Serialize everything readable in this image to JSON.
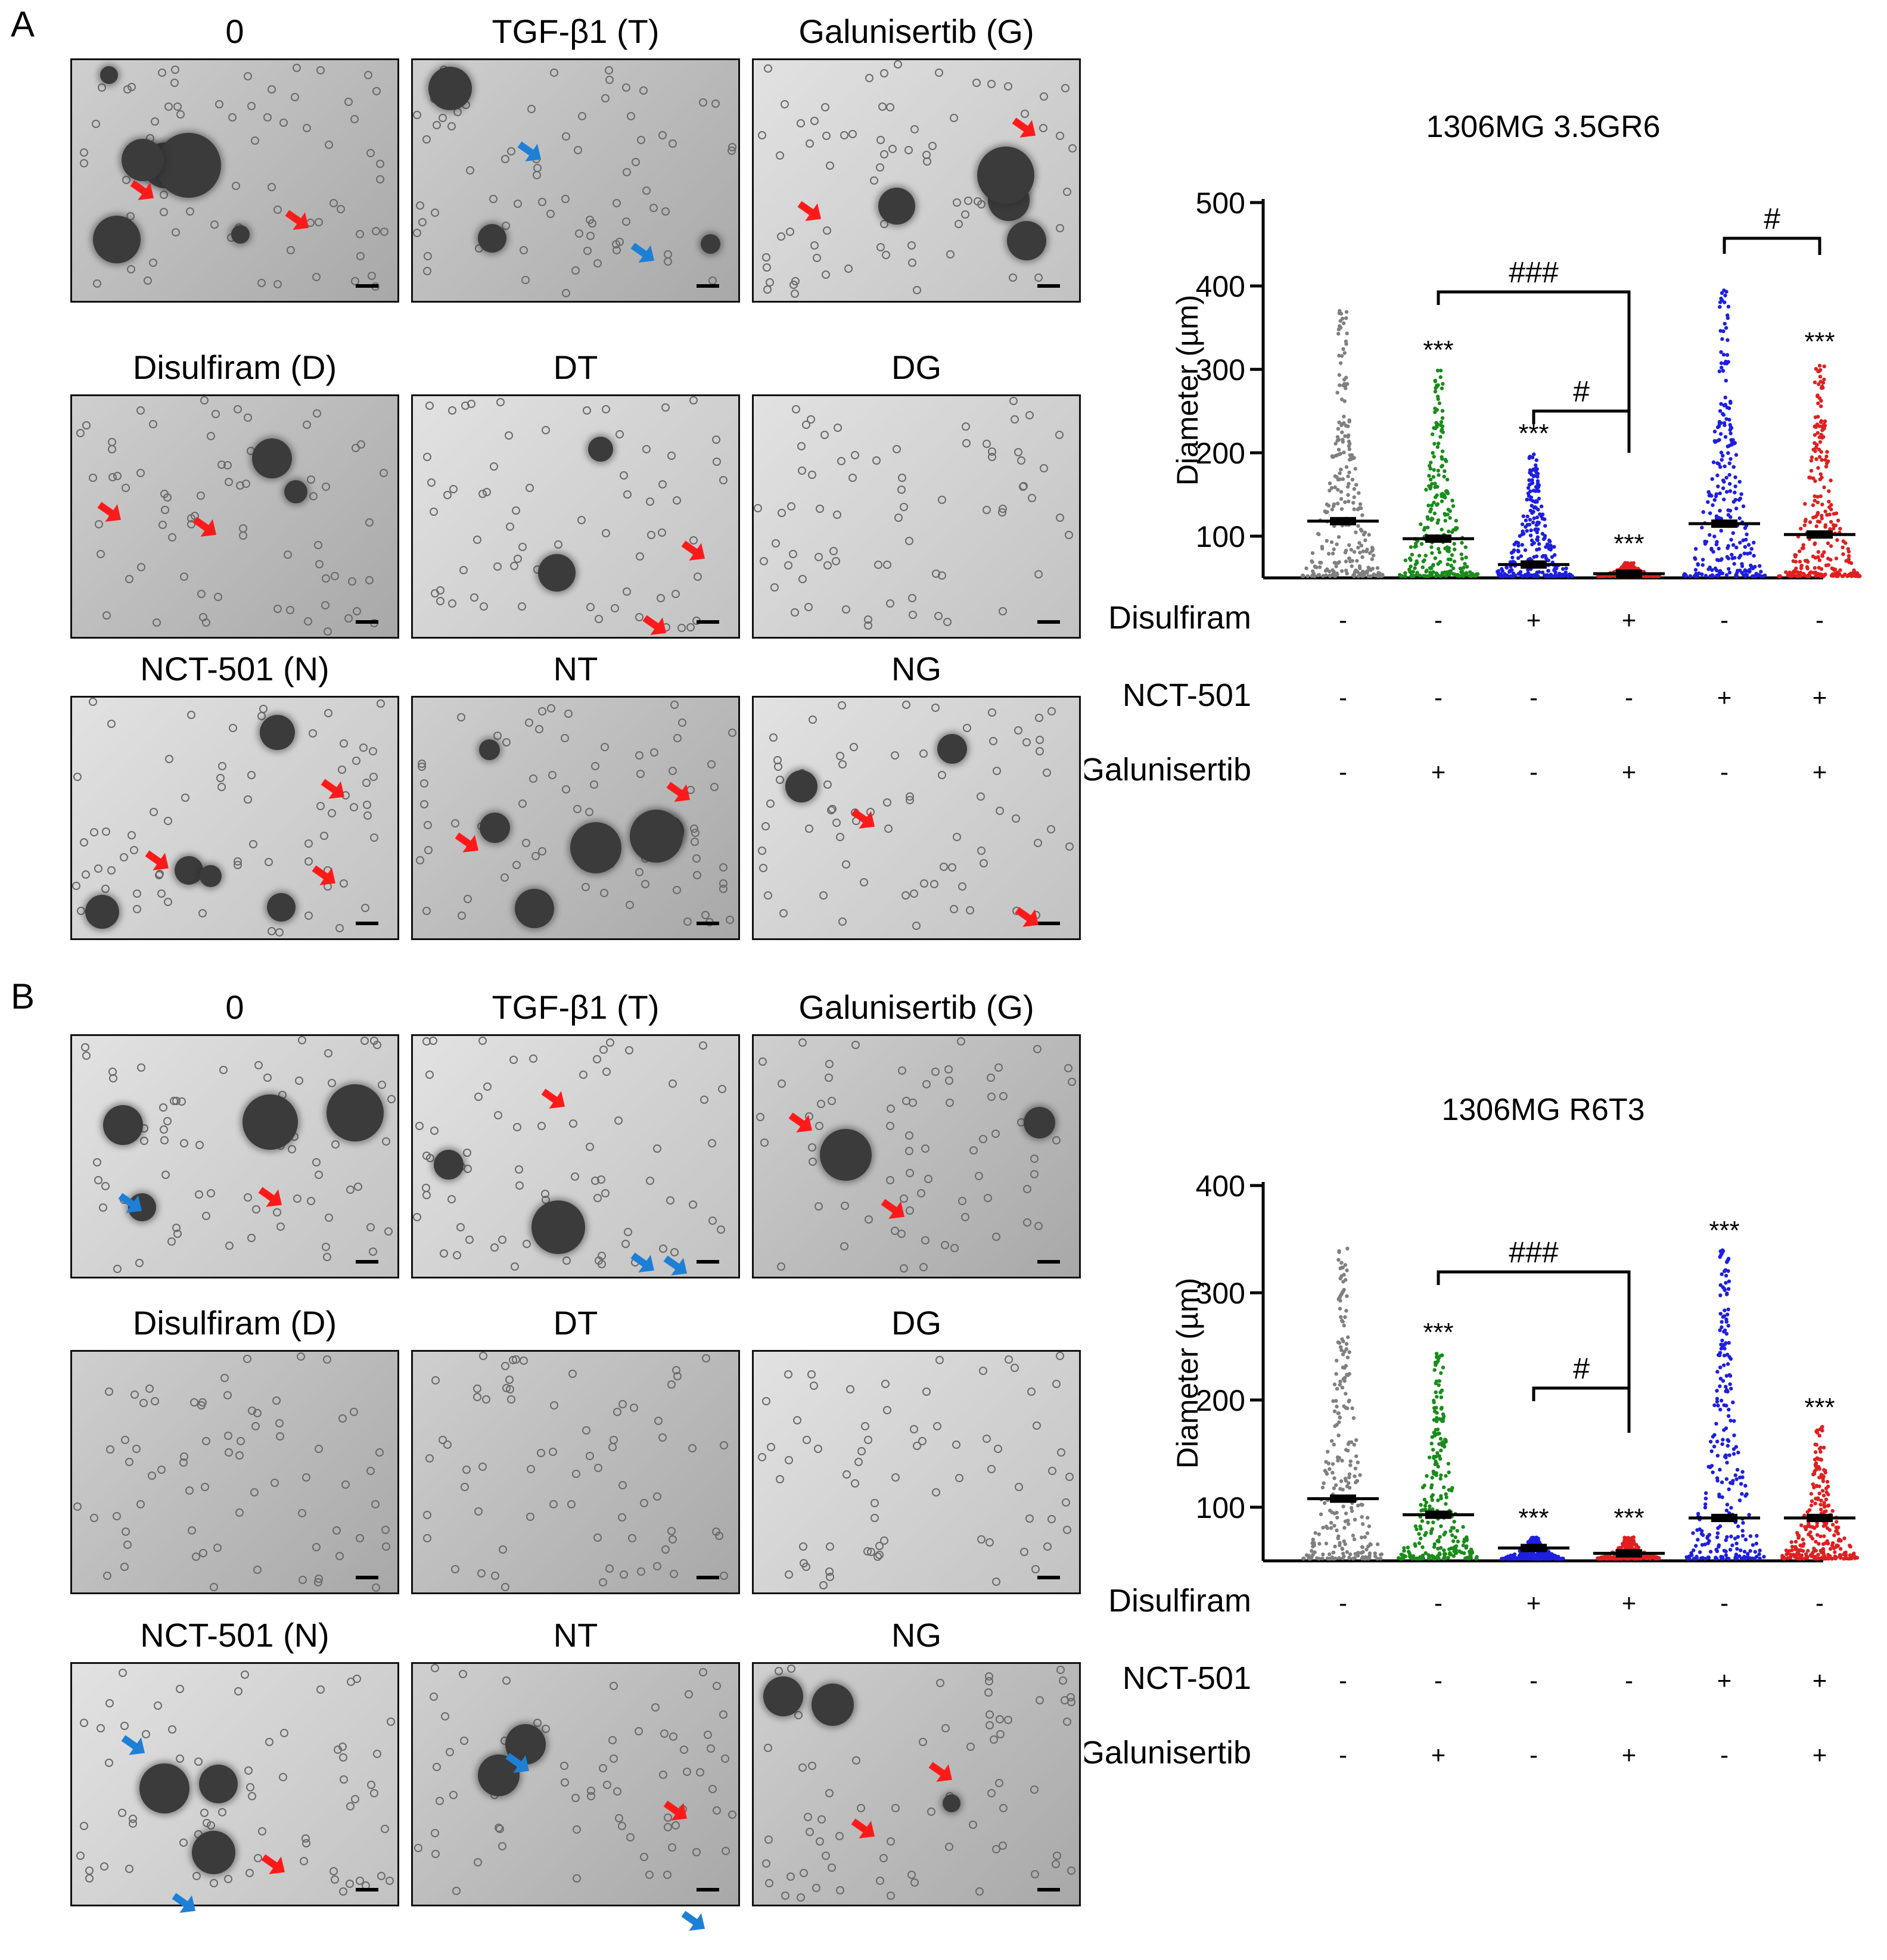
{
  "panels": [
    {
      "letter": "A",
      "images": [
        {
          "title": "0"
        },
        {
          "title": "TGF-β1 (T)"
        },
        {
          "title": "Galunisertib (G)"
        },
        {
          "title": "Disulfiram (D)"
        },
        {
          "title": "DT"
        },
        {
          "title": "DG"
        },
        {
          "title": "NCT-501 (N)"
        },
        {
          "title": "NT"
        },
        {
          "title": "NG"
        }
      ]
    },
    {
      "letter": "B",
      "images": [
        {
          "title": "0"
        },
        {
          "title": "TGF-β1 (T)"
        },
        {
          "title": "Galunisertib (G)"
        },
        {
          "title": "Disulfiram (D)"
        },
        {
          "title": "DT"
        },
        {
          "title": "DG"
        },
        {
          "title": "NCT-501 (N)"
        },
        {
          "title": "NT"
        },
        {
          "title": "NG"
        }
      ]
    }
  ],
  "treatment_labels": [
    "Disulfiram",
    "NCT-501",
    "Galunisertib"
  ],
  "chart_data": [
    {
      "type": "scatter",
      "title": "1306MG 3.5GR6",
      "ylabel": "Diameter (µm)",
      "ylim": [
        50,
        500
      ],
      "yticks": [
        "100",
        "200",
        "300",
        "400",
        "500"
      ],
      "groups": [
        {
          "color": "#808080",
          "mean": 118,
          "max": 375,
          "stars": ""
        },
        {
          "color": "#1a8c1a",
          "mean": 97,
          "max": 300,
          "stars": "***"
        },
        {
          "color": "#1f1fe0",
          "mean": 66,
          "max": 200,
          "stars": "***"
        },
        {
          "color": "#e02020",
          "mean": 55,
          "max": 68,
          "stars": "***"
        },
        {
          "color": "#1f1fe0",
          "mean": 115,
          "max": 395,
          "stars": ""
        },
        {
          "color": "#e02020",
          "mean": 102,
          "max": 310,
          "stars": "***"
        }
      ],
      "treatments": {
        "Disulfiram": [
          "-",
          "-",
          "+",
          "+",
          "-",
          "-"
        ],
        "NCT-501": [
          "-",
          "-",
          "-",
          "-",
          "+",
          "+"
        ],
        "Galunisertib": [
          "-",
          "+",
          "-",
          "+",
          "-",
          "+"
        ]
      },
      "brackets": [
        {
          "label": "###",
          "from": 1,
          "to": 3
        },
        {
          "label": "#",
          "from": 2,
          "to": 3
        },
        {
          "label": "#",
          "from": 4,
          "to": 5
        }
      ]
    },
    {
      "type": "scatter",
      "title": "1306MG R6T3",
      "ylabel": "Diameter (µm)",
      "ylim": [
        50,
        400
      ],
      "yticks": [
        "100",
        "200",
        "300",
        "400"
      ],
      "groups": [
        {
          "color": "#808080",
          "mean": 108,
          "max": 345,
          "stars": ""
        },
        {
          "color": "#1a8c1a",
          "mean": 93,
          "max": 245,
          "stars": "***"
        },
        {
          "color": "#1f1fe0",
          "mean": 62,
          "max": 72,
          "stars": "***"
        },
        {
          "color": "#e02020",
          "mean": 57,
          "max": 72,
          "stars": "***"
        },
        {
          "color": "#1f1fe0",
          "mean": 90,
          "max": 340,
          "stars": "***"
        },
        {
          "color": "#e02020",
          "mean": 90,
          "max": 175,
          "stars": "***"
        }
      ],
      "treatments": {
        "Disulfiram": [
          "-",
          "-",
          "+",
          "+",
          "-",
          "-"
        ],
        "NCT-501": [
          "-",
          "-",
          "-",
          "-",
          "+",
          "+"
        ],
        "Galunisertib": [
          "-",
          "+",
          "-",
          "+",
          "-",
          "+"
        ]
      },
      "brackets": [
        {
          "label": "###",
          "from": 1,
          "to": 3
        },
        {
          "label": "#",
          "from": 2,
          "to": 3
        }
      ]
    }
  ]
}
